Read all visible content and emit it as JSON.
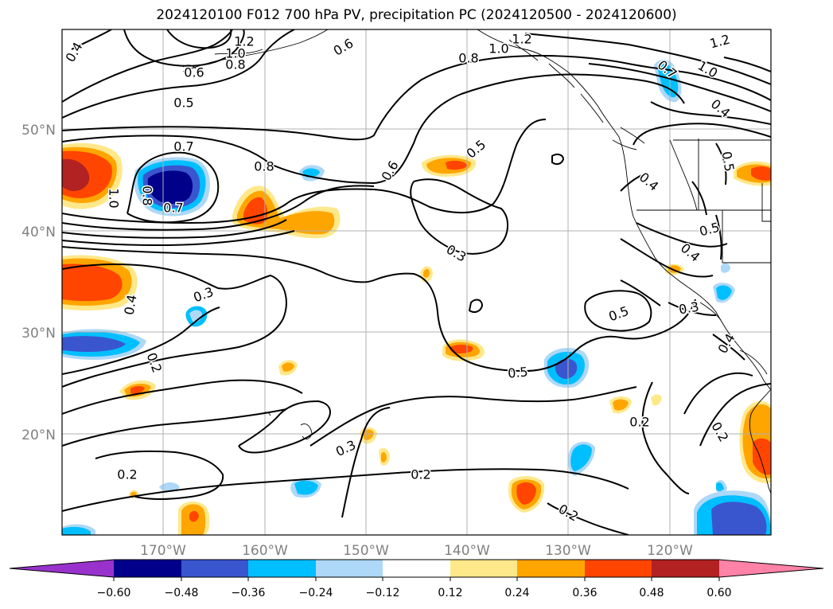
{
  "title": "2024120100 F012 700 hPa PV, precipitation PC (2024120500 - 2024120600)",
  "axes": {
    "lat_ticks": [
      "50°N",
      "40°N",
      "30°N",
      "20°N"
    ],
    "lon_ticks": [
      "170°W",
      "160°W",
      "150°W",
      "140°W",
      "130°W",
      "120°W"
    ]
  },
  "contour_labels": [
    {
      "text": "0.4",
      "rot": -60
    },
    {
      "text": "1.2",
      "rot": 0
    },
    {
      "text": "1.0",
      "rot": 0
    },
    {
      "text": "0.8",
      "rot": 0
    },
    {
      "text": "0.6",
      "rot": 0
    },
    {
      "text": "0.5",
      "rot": 0
    },
    {
      "text": "0.6",
      "rot": -30
    },
    {
      "text": "1.2",
      "rot": 0
    },
    {
      "text": "1.0",
      "rot": 0
    },
    {
      "text": "0.8",
      "rot": 0
    },
    {
      "text": "1.2",
      "rot": -15
    },
    {
      "text": "1.0",
      "rot": 30
    },
    {
      "text": "0.7",
      "rot": 40
    },
    {
      "text": "0.4",
      "rot": 40
    },
    {
      "text": "0.5",
      "rot": 80
    },
    {
      "text": "0.7",
      "rot": 0
    },
    {
      "text": "0.8",
      "rot": 0
    },
    {
      "text": "0.6",
      "rot": -60
    },
    {
      "text": "0.5",
      "rot": -40
    },
    {
      "text": "0.8",
      "rot": 90
    },
    {
      "text": "0.7",
      "rot": 0
    },
    {
      "text": "1.0",
      "rot": 90
    },
    {
      "text": "0.3",
      "rot": -20
    },
    {
      "text": "0.5",
      "rot": -20
    },
    {
      "text": "0.4",
      "rot": 40
    },
    {
      "text": "0.4",
      "rot": 40
    },
    {
      "text": "0.3",
      "rot": -10
    },
    {
      "text": "0.3",
      "rot": 30
    },
    {
      "text": "0.4",
      "rot": -80
    },
    {
      "text": "0.5",
      "rot": -15
    },
    {
      "text": "0.4",
      "rot": -60
    },
    {
      "text": "0.2",
      "rot": 70
    },
    {
      "text": "0.5",
      "rot": -5
    },
    {
      "text": "0.2",
      "rot": 0
    },
    {
      "text": "0.2",
      "rot": 60
    },
    {
      "text": "0.3",
      "rot": -25
    },
    {
      "text": "0.2",
      "rot": 0
    },
    {
      "text": "0.2",
      "rot": 0
    },
    {
      "text": "0.2",
      "rot": 30
    }
  ],
  "colorbar": {
    "labels": [
      "−0.60",
      "−0.48",
      "−0.36",
      "−0.24",
      "−0.12",
      "0.12",
      "0.24",
      "0.36",
      "0.48",
      "0.60"
    ],
    "colors": [
      "#9932cc",
      "#00008b",
      "#3a56cf",
      "#00bfff",
      "#add8f7",
      "#ffffff",
      "#ffe88a",
      "#ffa500",
      "#ff4500",
      "#b22222",
      "#ff82a8"
    ]
  }
}
